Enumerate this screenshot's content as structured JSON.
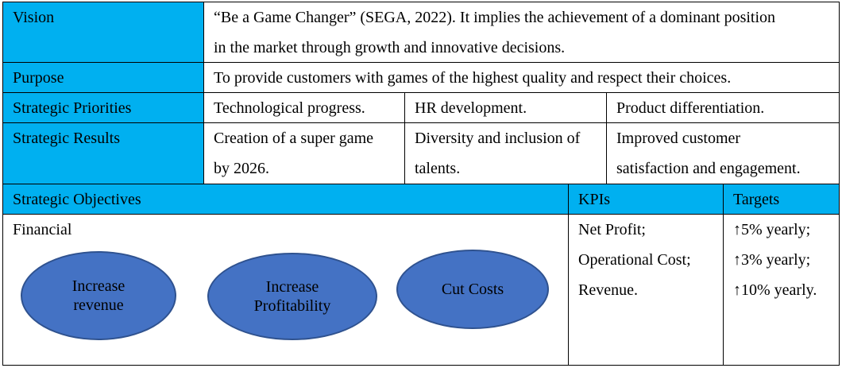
{
  "rows": {
    "vision": {
      "label": "Vision",
      "line1": "“Be a Game Changer” (SEGA, 2022). It implies the achievement of a dominant position",
      "line2": "in the market through growth and innovative decisions."
    },
    "purpose": {
      "label": "Purpose",
      "text": "To provide customers with games of the highest quality and respect their choices."
    },
    "priorities": {
      "label": "Strategic Priorities",
      "items": [
        "Technological progress.",
        "HR development.",
        "Product differentiation."
      ]
    },
    "results": {
      "label": "Strategic Results",
      "items": [
        {
          "line1": "Creation of a super game",
          "line2": "by 2026."
        },
        {
          "line1": "Diversity and inclusion of",
          "line2": "talents."
        },
        {
          "line1": "Improved customer",
          "line2": "satisfaction and engagement."
        }
      ]
    }
  },
  "objectives": {
    "header": "Strategic Objectives",
    "kpis_header": "KPIs",
    "targets_header": "Targets",
    "category": "Financial",
    "ovals": [
      {
        "line1": "Increase",
        "line2": "revenue"
      },
      {
        "line1": "Increase",
        "line2": "Profitability"
      },
      {
        "line1": "Cut Costs",
        "line2": ""
      }
    ],
    "kpis": [
      "Net Profit;",
      "Operational Cost;",
      "Revenue."
    ],
    "targets": [
      "↑5% yearly;",
      "↑3% yearly;",
      "↑10% yearly."
    ]
  },
  "colors": {
    "header_fill": "#00b0f0",
    "oval_fill": "#4472c4",
    "oval_border": "#2f528f"
  }
}
